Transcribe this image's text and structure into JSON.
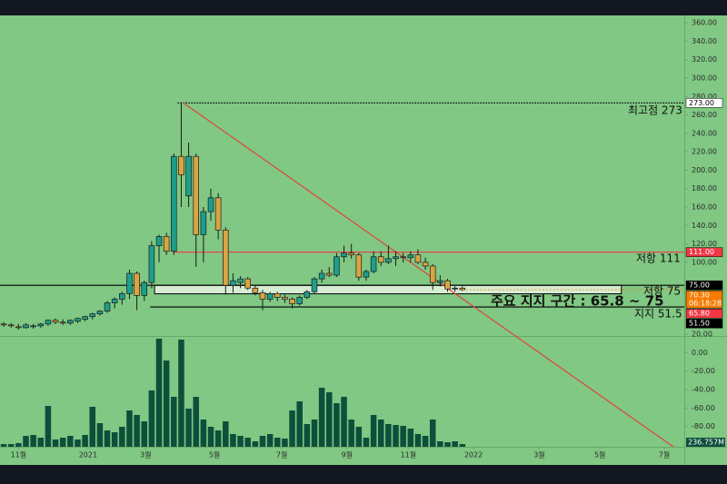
{
  "chart_data": {
    "type": "candlestick",
    "open": [
      33,
      32,
      30,
      29,
      30,
      31,
      33,
      37,
      35,
      34,
      36,
      38,
      41,
      44,
      47,
      56,
      60,
      66,
      88,
      64,
      78,
      118,
      128,
      112,
      215,
      172,
      215,
      130,
      155,
      170,
      135,
      75,
      78,
      82,
      72,
      67,
      60,
      66,
      62,
      60,
      55,
      62,
      68,
      82,
      88,
      86,
      106,
      110,
      108,
      84,
      90,
      106,
      100,
      104,
      106,
      105,
      108,
      100,
      96,
      78,
      80,
      71,
      72
    ],
    "high": [
      35,
      34,
      33,
      34,
      33,
      34,
      38,
      39,
      38,
      38,
      40,
      42,
      45,
      48,
      58,
      62,
      68,
      92,
      90,
      80,
      123,
      130,
      132,
      218,
      273,
      230,
      218,
      160,
      180,
      175,
      138,
      88,
      85,
      84,
      75,
      70,
      68,
      68,
      65,
      62,
      64,
      70,
      84,
      92,
      95,
      110,
      118,
      120,
      110,
      92,
      112,
      112,
      118,
      112,
      110,
      112,
      114,
      105,
      98,
      86,
      82,
      74,
      74
    ],
    "low": [
      30,
      29,
      27,
      28,
      28,
      29,
      31,
      33,
      32,
      32,
      34,
      36,
      38,
      42,
      45,
      50,
      54,
      60,
      48,
      58,
      72,
      100,
      108,
      108,
      160,
      160,
      95,
      100,
      145,
      125,
      65,
      67,
      72,
      70,
      64,
      48,
      57,
      58,
      56,
      50,
      53,
      60,
      66,
      78,
      84,
      84,
      100,
      104,
      80,
      80,
      88,
      96,
      98,
      96,
      100,
      100,
      98,
      92,
      70,
      74,
      68,
      68,
      69
    ],
    "close": [
      32,
      31,
      29,
      32,
      31,
      33,
      37,
      35,
      34,
      37,
      39,
      41,
      44,
      47,
      56,
      60,
      66,
      88,
      64,
      78,
      118,
      128,
      112,
      215,
      195,
      215,
      130,
      155,
      170,
      135,
      75,
      80,
      82,
      72,
      67,
      60,
      66,
      62,
      60,
      55,
      62,
      68,
      82,
      88,
      86,
      106,
      110,
      108,
      84,
      90,
      106,
      100,
      104,
      106,
      105,
      108,
      100,
      96,
      78,
      80,
      71,
      72,
      70.3
    ],
    "volume": [
      240,
      240,
      320,
      960,
      1040,
      800,
      3600,
      640,
      800,
      960,
      640,
      1040,
      3520,
      2080,
      1440,
      1280,
      1760,
      3200,
      2800,
      2240,
      4960,
      9520,
      7600,
      4400,
      9440,
      3360,
      4400,
      2400,
      1760,
      1440,
      2240,
      1120,
      960,
      800,
      480,
      960,
      1120,
      800,
      720,
      3200,
      4000,
      2000,
      2400,
      5200,
      4800,
      3840,
      4400,
      2400,
      1760,
      800,
      2800,
      2400,
      2000,
      1920,
      1840,
      1600,
      1120,
      960,
      2400,
      480,
      400,
      480,
      236.757
    ],
    "last_volume_label": "236.757M",
    "up_color": "#1f9e8c",
    "down_color": "#d9a443",
    "volume_color": "#0c4f3b",
    "ylim": [
      20,
      368
    ],
    "yticks": [
      {
        "value": 360,
        "label": "360.00"
      },
      {
        "value": 340,
        "label": "340.00"
      },
      {
        "value": 320,
        "label": "320.00"
      },
      {
        "value": 300,
        "label": "300.00"
      },
      {
        "value": 280,
        "label": "280.00"
      },
      {
        "value": 260,
        "label": "260.00"
      },
      {
        "value": 240,
        "label": "240.00"
      },
      {
        "value": 220,
        "label": "220.00"
      },
      {
        "value": 200,
        "label": "200.00"
      },
      {
        "value": 180,
        "label": "180.00"
      },
      {
        "value": 160,
        "label": "160.00"
      },
      {
        "value": 140,
        "label": "140.00"
      },
      {
        "value": 120,
        "label": "120.00"
      },
      {
        "value": 100,
        "label": "100.00"
      }
    ],
    "y2lim": [
      -102,
      18
    ],
    "y2ticks": [
      {
        "value": 20,
        "label": "20.00"
      },
      {
        "value": 0,
        "label": "0.00"
      },
      {
        "value": -20,
        "label": "-20.00"
      },
      {
        "value": -40,
        "label": "-40.00"
      },
      {
        "value": -60,
        "label": "-60.00"
      },
      {
        "value": -80,
        "label": "-80.00"
      }
    ],
    "vlim": [
      0,
      9600
    ],
    "xlim": [
      -0.5,
      92
    ],
    "xticks": [
      {
        "value": 2,
        "label": "11월"
      },
      {
        "value": 11.4,
        "label": "2021"
      },
      {
        "value": 19.2,
        "label": "3월"
      },
      {
        "value": 28.5,
        "label": "5월"
      },
      {
        "value": 37.6,
        "label": "7월"
      },
      {
        "value": 46.4,
        "label": "9월"
      },
      {
        "value": 54.7,
        "label": "11월"
      },
      {
        "value": 63.5,
        "label": "2022"
      },
      {
        "value": 72.4,
        "label": "3월"
      },
      {
        "value": 80.6,
        "label": "5월"
      },
      {
        "value": 89.3,
        "label": "7월"
      }
    ],
    "levels": [
      {
        "value": 273,
        "label": "273.00",
        "start": 23.5,
        "color": "#000000",
        "style": "dotted",
        "tag_bg": "#ffffff",
        "tag_fg": "#000000"
      },
      {
        "value": 111,
        "label": "111.00",
        "start": 22.9,
        "color": "#f23645",
        "style": "solid",
        "tag_bg": "#f23645",
        "tag_fg": "#ffffff"
      },
      {
        "value": 75,
        "label": "75.00",
        "start": -0.5,
        "color": "#000000",
        "style": "solid",
        "tag_bg": "#000000",
        "tag_fg": "#ffffff"
      },
      {
        "value": 51.5,
        "label": "51.50",
        "start": 19.8,
        "color": "#000000",
        "style": "solid",
        "tag_bg": "#000000",
        "tag_fg": "#ffffff"
      }
    ],
    "zone": {
      "low": 65.8,
      "high": 75,
      "low_label": "65.80",
      "start": 20.4,
      "end": 83.5,
      "fill": "#d6ecd3",
      "tag_bg": "#f23645"
    },
    "last_price": {
      "value": 70.3,
      "label": "70.30",
      "countdown": "06:18:28",
      "color": "#f57c00"
    },
    "trendline": {
      "from": [
        24.3,
        273
      ],
      "to": [
        63.5,
        52
      ],
      "color": "#e0453a"
    },
    "annotations": [
      "최고점 273",
      "저항 111",
      "저항 75",
      "주요 지지 구간 : 65.8 ~ 75",
      "지지 51.5"
    ]
  }
}
